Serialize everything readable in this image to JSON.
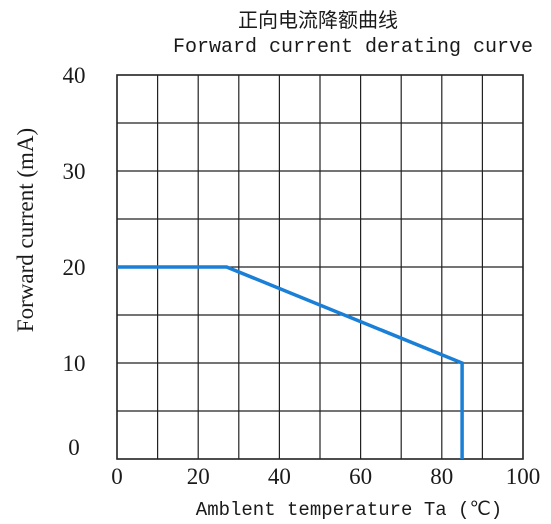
{
  "title": {
    "cn": "正向电流降额曲线",
    "en": "Forward current derating curve"
  },
  "chart_data": {
    "type": "line",
    "xlabel": "Amblent temperature Ta (℃)",
    "ylabel": "Forward current (mA)",
    "xlim": [
      0,
      100
    ],
    "ylim": [
      0,
      40
    ],
    "x_ticks": [
      0,
      20,
      40,
      60,
      80,
      100
    ],
    "y_ticks": [
      0,
      10,
      20,
      30,
      40
    ],
    "x_grid_step": 10,
    "y_grid_step": 5,
    "grid": true,
    "series": [
      {
        "points": [
          {
            "x": 0,
            "y": 20
          },
          {
            "x": 27,
            "y": 20
          },
          {
            "x": 85,
            "y": 10
          },
          {
            "x": 85,
            "y": 0
          }
        ],
        "color": "#1a7fd6"
      }
    ]
  }
}
